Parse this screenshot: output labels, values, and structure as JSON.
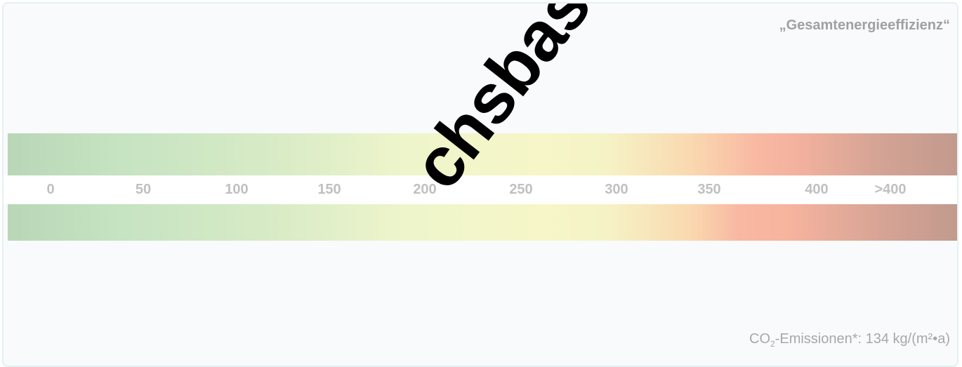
{
  "title": "„Gesamtenergieeffizienz“",
  "scale_labels": [
    "0",
    "50",
    "100",
    "150",
    "200",
    "250",
    "300",
    "350",
    "400",
    ">400"
  ],
  "watermark_text": "chsbasierten",
  "co2": {
    "prefix": "CO",
    "subscript": "2",
    "suffix": "-Emissionen*: 134 kg/(m²•a)"
  },
  "colors": {
    "green": "#c6e3c2",
    "yellow": "#f6f6c8",
    "orange": "#f8b8a2",
    "brown": "#c29a8e",
    "label_gray": "#c0c0c0"
  }
}
